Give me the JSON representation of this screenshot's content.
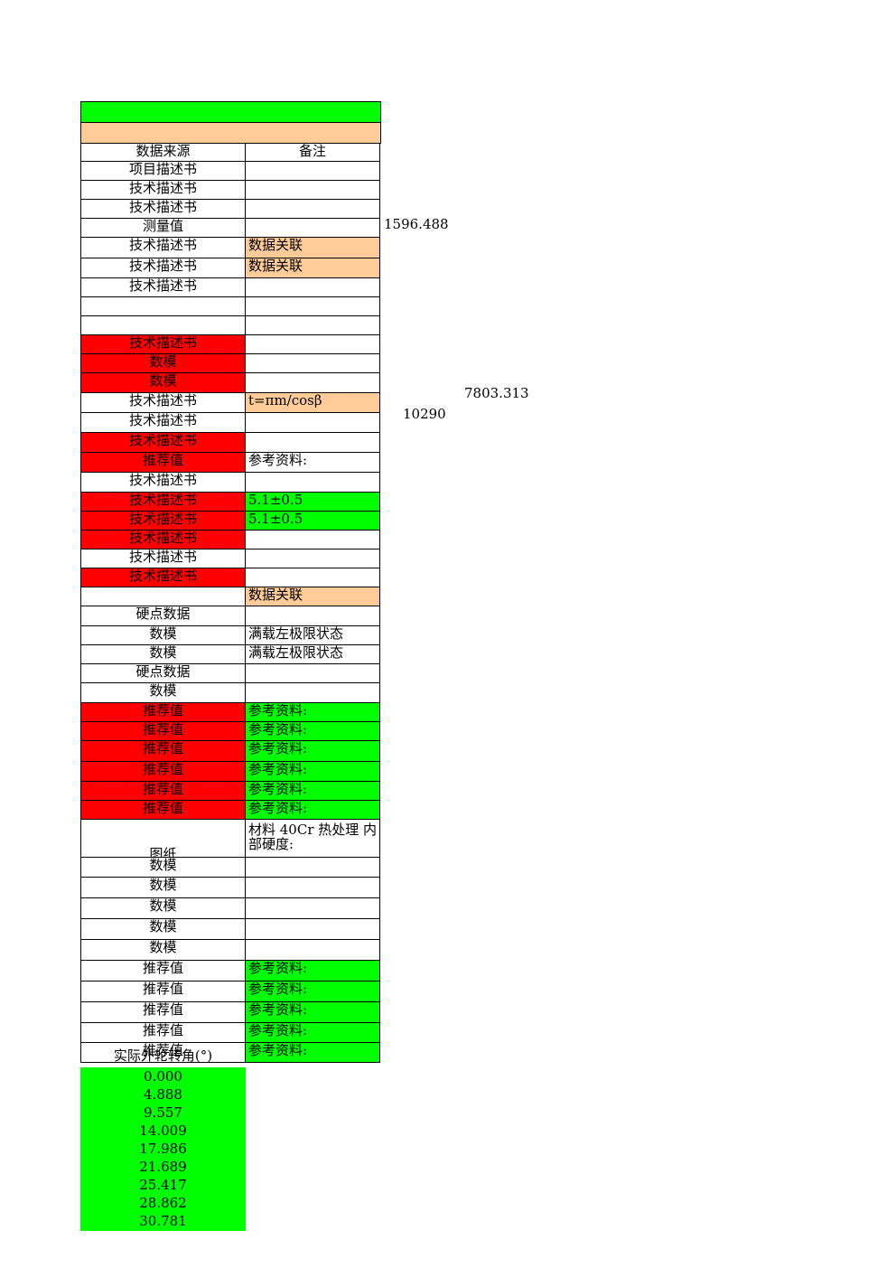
{
  "header": {
    "col1": "数据来源",
    "col2": "备注"
  },
  "rows": [
    {
      "src": "项目描述书",
      "note": "",
      "c1": "",
      "c2": ""
    },
    {
      "src": "技术描述书",
      "note": "",
      "c1": "",
      "c2": ""
    },
    {
      "src": "技术描述书",
      "note": "",
      "c1": "",
      "c2": ""
    },
    {
      "src": "测量值",
      "note": "",
      "c1": "",
      "c2": ""
    },
    {
      "src": "技术描述书",
      "note": "数据关联",
      "c1": "",
      "c2": "o"
    },
    {
      "src": "技术描述书",
      "note": "数据关联",
      "c1": "",
      "c2": "o"
    },
    {
      "src": "技术描述书",
      "note": "",
      "c1": "",
      "c2": ""
    },
    {
      "src": "",
      "note": "",
      "c1": "",
      "c2": ""
    },
    {
      "src": "",
      "note": "",
      "c1": "",
      "c2": ""
    },
    {
      "src": "技术描述书",
      "note": "",
      "c1": "r",
      "c2": ""
    },
    {
      "src": "数模",
      "note": "",
      "c1": "r",
      "c2": ""
    },
    {
      "src": "数模",
      "note": "",
      "c1": "r",
      "c2": ""
    },
    {
      "src": "技术描述书",
      "note": "t=πm/cosβ",
      "c1": "",
      "c2": "o"
    },
    {
      "src": "技术描述书",
      "note": "",
      "c1": "",
      "c2": ""
    },
    {
      "src": "技术描述书",
      "note": "",
      "c1": "r",
      "c2": ""
    },
    {
      "src": "推荐值",
      "note": "参考资料:",
      "c1": "r",
      "c2": ""
    },
    {
      "src": "技术描述书",
      "note": "",
      "c1": "",
      "c2": ""
    },
    {
      "src": "技术描述书",
      "note": "5.1±0.5",
      "c1": "r",
      "c2": "g"
    },
    {
      "src": "技术描述书",
      "note": "5.1±0.5",
      "c1": "r",
      "c2": "g"
    },
    {
      "src": "技术描述书",
      "note": "",
      "c1": "r",
      "c2": ""
    },
    {
      "src": "技术描述书",
      "note": "",
      "c1": "",
      "c2": ""
    },
    {
      "src": "技术描述书",
      "note": "",
      "c1": "r",
      "c2": ""
    },
    {
      "src": "",
      "note": "数据关联",
      "c1": "",
      "c2": "o"
    },
    {
      "src": "硬点数据",
      "note": "",
      "c1": "",
      "c2": ""
    },
    {
      "src": "数模",
      "note": "满载左极限状态",
      "c1": "",
      "c2": ""
    },
    {
      "src": "数模",
      "note": "满载左极限状态",
      "c1": "",
      "c2": ""
    },
    {
      "src": "硬点数据",
      "note": "",
      "c1": "",
      "c2": ""
    },
    {
      "src": "数模",
      "note": "",
      "c1": "",
      "c2": ""
    },
    {
      "src": "推荐值",
      "note": "参考资料:",
      "c1": "r",
      "c2": "g"
    },
    {
      "src": "推荐值",
      "note": "参考资料:",
      "c1": "r",
      "c2": "g"
    },
    {
      "src": "推荐值",
      "note": "参考资料:",
      "c1": "r",
      "c2": "g"
    },
    {
      "src": "推荐值",
      "note": "参考资料:",
      "c1": "r",
      "c2": "g"
    },
    {
      "src": "推荐值",
      "note": "参考资料:",
      "c1": "r",
      "c2": "g"
    },
    {
      "src": "推荐值",
      "note": "参考资料:",
      "c1": "r",
      "c2": "g"
    },
    {
      "src": "图纸",
      "note": "材料 40Cr 热处理 内部硬度:",
      "c1": "",
      "c2": ""
    },
    {
      "src": "数模",
      "note": "",
      "c1": "",
      "c2": ""
    },
    {
      "src": "数模",
      "note": "",
      "c1": "",
      "c2": ""
    },
    {
      "src": "数模",
      "note": "",
      "c1": "",
      "c2": ""
    },
    {
      "src": "数模",
      "note": "",
      "c1": "",
      "c2": ""
    },
    {
      "src": "数模",
      "note": "",
      "c1": "",
      "c2": ""
    },
    {
      "src": "推荐值",
      "note": "参考资料:",
      "c1": "",
      "c2": "g"
    },
    {
      "src": "推荐值",
      "note": "参考资料:",
      "c1": "",
      "c2": "g"
    },
    {
      "src": "推荐值",
      "note": "参考资料:",
      "c1": "",
      "c2": "g"
    },
    {
      "src": "推荐值",
      "note": "参考资料:",
      "c1": "",
      "c2": "g"
    },
    {
      "src": "推荐值",
      "note": "参考资料:",
      "c1": "",
      "c2": "g"
    }
  ],
  "floating_values": [
    "1596.488",
    "7803.313",
    "10290"
  ],
  "angles": {
    "header": "实际外轮转角(°)",
    "values": [
      "0.000",
      "4.888",
      "9.557",
      "14.009",
      "17.986",
      "21.689",
      "25.417",
      "28.862",
      "30.781"
    ]
  }
}
